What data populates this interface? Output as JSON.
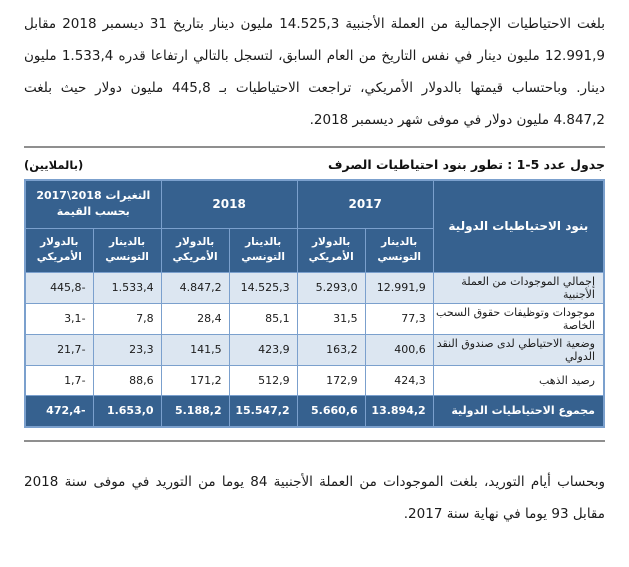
{
  "document": {
    "intro_paragraph": "بلغت الاحتياطيات الإجمالية من العملة الأجنبية 14.525,3 مليون دينار بتاريخ 31 ديسمبر 2018 مقابل 12.991,9 مليون دينار في نفس التاريخ من العام السابق، لتسجل بالتالي ارتفاعا قدره 1.533,4 مليون دينار. وباحتساب قيمتها بالدولار الأمريكي، تراجعت الاحتياطيات بـ 445,8 مليون دولار حيث بلغت 4.847,2 مليون دولار في موفى شهر ديسمبر 2018.",
    "closing_paragraph": "وبحساب أيام التوريد، بلغت الموجودات من العملة الأجنبية 84 يوما من التوريد في موفى سنة 2018 مقابل 93 يوما في نهاية سنة 2017."
  },
  "table": {
    "caption": "جدول عدد 5-1 : تطور بنود احتياطيات الصرف",
    "unit_note": "(بالملايين)",
    "header": {
      "items_column": "بنود الاحتياطيات الدولية",
      "group_2017": "2017",
      "group_2018": "2018",
      "group_changes_line1": "التغيرات 2018\\2017",
      "group_changes_line2": "بحسب القيمة",
      "sub_dinar": "بالدينار التونسي",
      "sub_dollar": "بالدولار الأمريكي"
    },
    "rows": [
      {
        "label": "إجمالي الموجودات من العملة الأجنبية",
        "values": [
          "12.991,9",
          "5.293,0",
          "14.525,3",
          "4.847,2",
          "1.533,4",
          "-445,8"
        ]
      },
      {
        "label": "موجودات وتوظيفات حقوق السحب الخاصة",
        "values": [
          "77,3",
          "31,5",
          "85,1",
          "28,4",
          "7,8",
          "-3,1"
        ]
      },
      {
        "label": "وضعية الاحتياطي لدى صندوق النقد الدولي",
        "values": [
          "400,6",
          "163,2",
          "423,9",
          "141,5",
          "23,3",
          "-21,7"
        ]
      },
      {
        "label": "رصيد الذهب",
        "values": [
          "424,3",
          "172,9",
          "512,9",
          "171,2",
          "88,6",
          "-1,7"
        ]
      }
    ],
    "total_row": {
      "label": "مجموع الاحتياطيات الدولية",
      "values": [
        "13.894,2",
        "5.660,6",
        "15.547,2",
        "5.188,2",
        "1.653,0",
        "-472,4"
      ]
    },
    "colors": {
      "header_bg": "#36618f",
      "header_text": "#ffffff",
      "band_bg": "#dce6f1",
      "white_bg": "#ffffff",
      "border": "#7ba0cd",
      "rule": "#8f8f8f"
    }
  }
}
